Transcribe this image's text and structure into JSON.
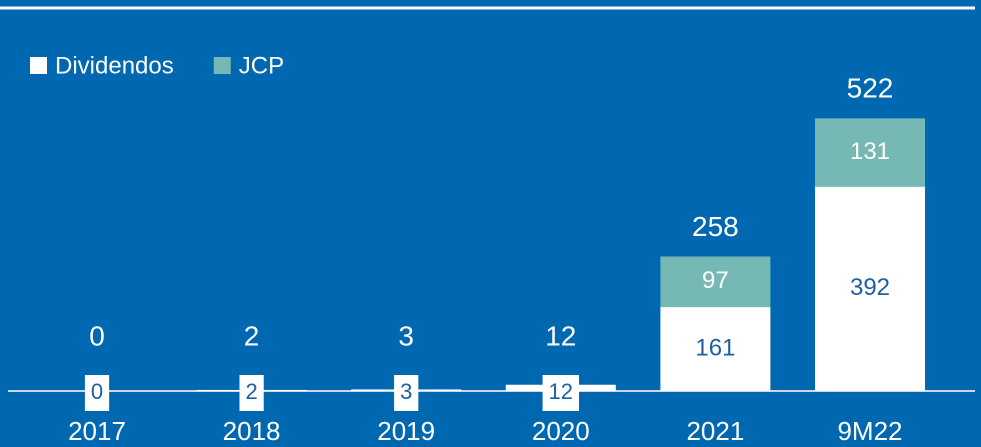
{
  "chart_data": {
    "type": "stacked_bar",
    "categories": [
      "2017",
      "2018",
      "2019",
      "2020",
      "2021",
      "9M22"
    ],
    "series": [
      {
        "name": "Dividendos",
        "color": "#ffffff",
        "values": [
          0,
          2,
          3,
          12,
          161,
          392
        ]
      },
      {
        "name": "JCP",
        "color": "#76b8b4",
        "values": [
          0,
          0,
          0,
          0,
          97,
          131
        ]
      }
    ],
    "totals": [
      0,
      2,
      3,
      12,
      258,
      522
    ],
    "ylim": [
      0,
      750
    ],
    "legend": "top-left"
  }
}
